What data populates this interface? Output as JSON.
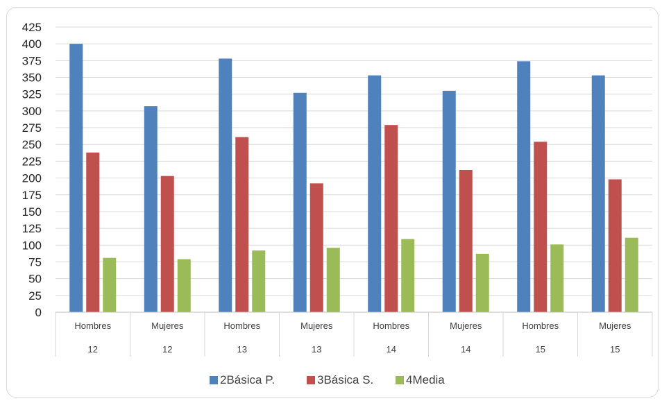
{
  "chart_data": {
    "type": "bar",
    "categories": [
      {
        "sub": "Hombres",
        "group": "12"
      },
      {
        "sub": "Mujeres",
        "group": "12"
      },
      {
        "sub": "Hombres",
        "group": "13"
      },
      {
        "sub": "Mujeres",
        "group": "13"
      },
      {
        "sub": "Hombres",
        "group": "14"
      },
      {
        "sub": "Mujeres",
        "group": "14"
      },
      {
        "sub": "Hombres",
        "group": "15"
      },
      {
        "sub": "Mujeres",
        "group": "15"
      }
    ],
    "series": [
      {
        "name": "2Básica P.",
        "color": "#4f81bd",
        "values": [
          400,
          307,
          378,
          327,
          353,
          330,
          374,
          353
        ]
      },
      {
        "name": "3Básica S.",
        "color": "#c0504d",
        "values": [
          238,
          203,
          261,
          192,
          279,
          212,
          254,
          198
        ]
      },
      {
        "name": "4Media",
        "color": "#9bbb59",
        "values": [
          81,
          79,
          92,
          96,
          109,
          87,
          101,
          111
        ]
      }
    ],
    "ylim": [
      0,
      425
    ],
    "ytick_step": 25,
    "yticks": [
      "0",
      "25",
      "50",
      "75",
      "100",
      "125",
      "150",
      "175",
      "200",
      "225",
      "250",
      "275",
      "300",
      "325",
      "350",
      "375",
      "400",
      "425"
    ],
    "grid": true,
    "legend_position": "bottom"
  }
}
